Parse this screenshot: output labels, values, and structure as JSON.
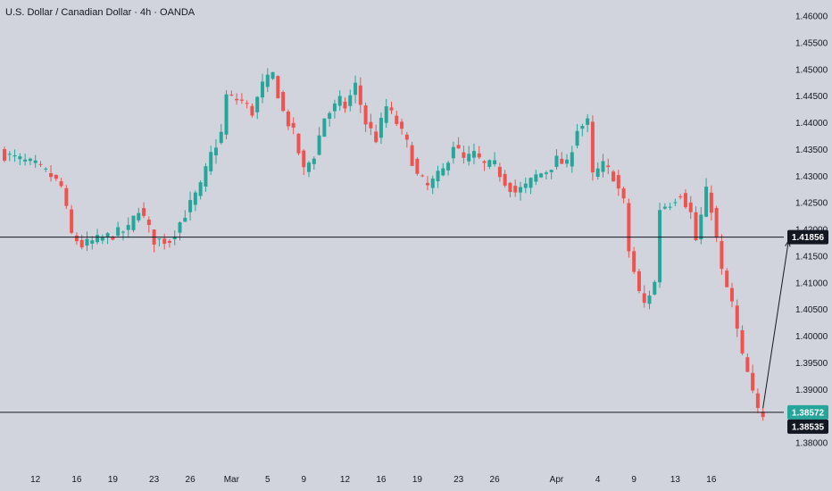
{
  "header": {
    "title": "U.S. Dollar / Canadian Dollar · 4h · OANDA"
  },
  "colors": {
    "background": "#d1d4dc",
    "bull": "#26a69a",
    "bear": "#ef5350",
    "line": "#131722",
    "badge_dark": "#131722",
    "badge_green": "#26a69a"
  },
  "chart_data": {
    "type": "candlestick",
    "title": "U.S. Dollar / Canadian Dollar · 4h · OANDA",
    "ylim": [
      1.378,
      1.4618
    ],
    "y_ticks": [
      "1.46000",
      "1.45500",
      "1.45000",
      "1.44500",
      "1.44000",
      "1.43500",
      "1.43000",
      "1.42500",
      "1.42000",
      "1.41500",
      "1.41000",
      "1.40500",
      "1.40000",
      "1.39500",
      "1.39000",
      "1.38500",
      "1.38000"
    ],
    "y_tick_values": [
      1.46,
      1.455,
      1.45,
      1.445,
      1.44,
      1.435,
      1.43,
      1.425,
      1.42,
      1.415,
      1.41,
      1.405,
      1.4,
      1.395,
      1.39,
      1.385,
      1.38
    ],
    "x_ticks": [
      "12",
      "16",
      "19",
      "23",
      "26",
      "Mar",
      "5",
      "9",
      "12",
      "16",
      "19",
      "23",
      "26",
      "Apr",
      "4",
      "9",
      "13",
      "16"
    ],
    "x_tick_index": [
      6,
      14,
      21,
      29,
      36,
      44,
      51,
      58,
      66,
      73,
      80,
      88,
      95,
      107,
      115,
      122,
      130,
      137
    ],
    "horizontal_lines": [
      {
        "value": 1.41856,
        "label": "1.41856"
      },
      {
        "value": 1.38572,
        "label": "1.38572"
      }
    ],
    "last_price": "1.38572",
    "current_price": "1.38535",
    "projection": {
      "from_index": 147,
      "from_value": 1.3865,
      "to_index": 153,
      "to_value": 1.41856
    },
    "close_path": [
      [
        0,
        1.434
      ],
      [
        6,
        1.432
      ],
      [
        9,
        1.43
      ],
      [
        11,
        1.428
      ],
      [
        13,
        1.419
      ],
      [
        15,
        1.417
      ],
      [
        18,
        1.418
      ],
      [
        21,
        1.419
      ],
      [
        24,
        1.42
      ],
      [
        26,
        1.424
      ],
      [
        27,
        1.422
      ],
      [
        29,
        1.418
      ],
      [
        32,
        1.418
      ],
      [
        35,
        1.423
      ],
      [
        38,
        1.428
      ],
      [
        40,
        1.434
      ],
      [
        42,
        1.438
      ],
      [
        43,
        1.445
      ],
      [
        46,
        1.444
      ],
      [
        48,
        1.442
      ],
      [
        50,
        1.447
      ],
      [
        52,
        1.449
      ],
      [
        54,
        1.442
      ],
      [
        56,
        1.438
      ],
      [
        58,
        1.431
      ],
      [
        60,
        1.434
      ],
      [
        62,
        1.441
      ],
      [
        65,
        1.444
      ],
      [
        66,
        1.443
      ],
      [
        68,
        1.447
      ],
      [
        70,
        1.44
      ],
      [
        72,
        1.437
      ],
      [
        74,
        1.443
      ],
      [
        76,
        1.44
      ],
      [
        78,
        1.436
      ],
      [
        80,
        1.43
      ],
      [
        82,
        1.428
      ],
      [
        85,
        1.431
      ],
      [
        87,
        1.436
      ],
      [
        89,
        1.433
      ],
      [
        91,
        1.434
      ],
      [
        93,
        1.432
      ],
      [
        95,
        1.432
      ],
      [
        97,
        1.429
      ],
      [
        99,
        1.427
      ],
      [
        101,
        1.428
      ],
      [
        103,
        1.43
      ],
      [
        105,
        1.431
      ],
      [
        107,
        1.433
      ],
      [
        109,
        1.432
      ],
      [
        111,
        1.439
      ],
      [
        113,
        1.44
      ],
      [
        114,
        1.43
      ],
      [
        116,
        1.432
      ],
      [
        118,
        1.43
      ],
      [
        120,
        1.425
      ],
      [
        121,
        1.416
      ],
      [
        123,
        1.408
      ],
      [
        124,
        1.406
      ],
      [
        126,
        1.41
      ],
      [
        127,
        1.424
      ],
      [
        129,
        1.425
      ],
      [
        131,
        1.427
      ],
      [
        133,
        1.423
      ],
      [
        134,
        1.418
      ],
      [
        136,
        1.427
      ],
      [
        137,
        1.424
      ],
      [
        138,
        1.418
      ],
      [
        139,
        1.412
      ],
      [
        141,
        1.406
      ],
      [
        142,
        1.401
      ],
      [
        143,
        1.396
      ],
      [
        144,
        1.393
      ],
      [
        145,
        1.389
      ],
      [
        146,
        1.386
      ],
      [
        147,
        1.3855
      ]
    ]
  }
}
